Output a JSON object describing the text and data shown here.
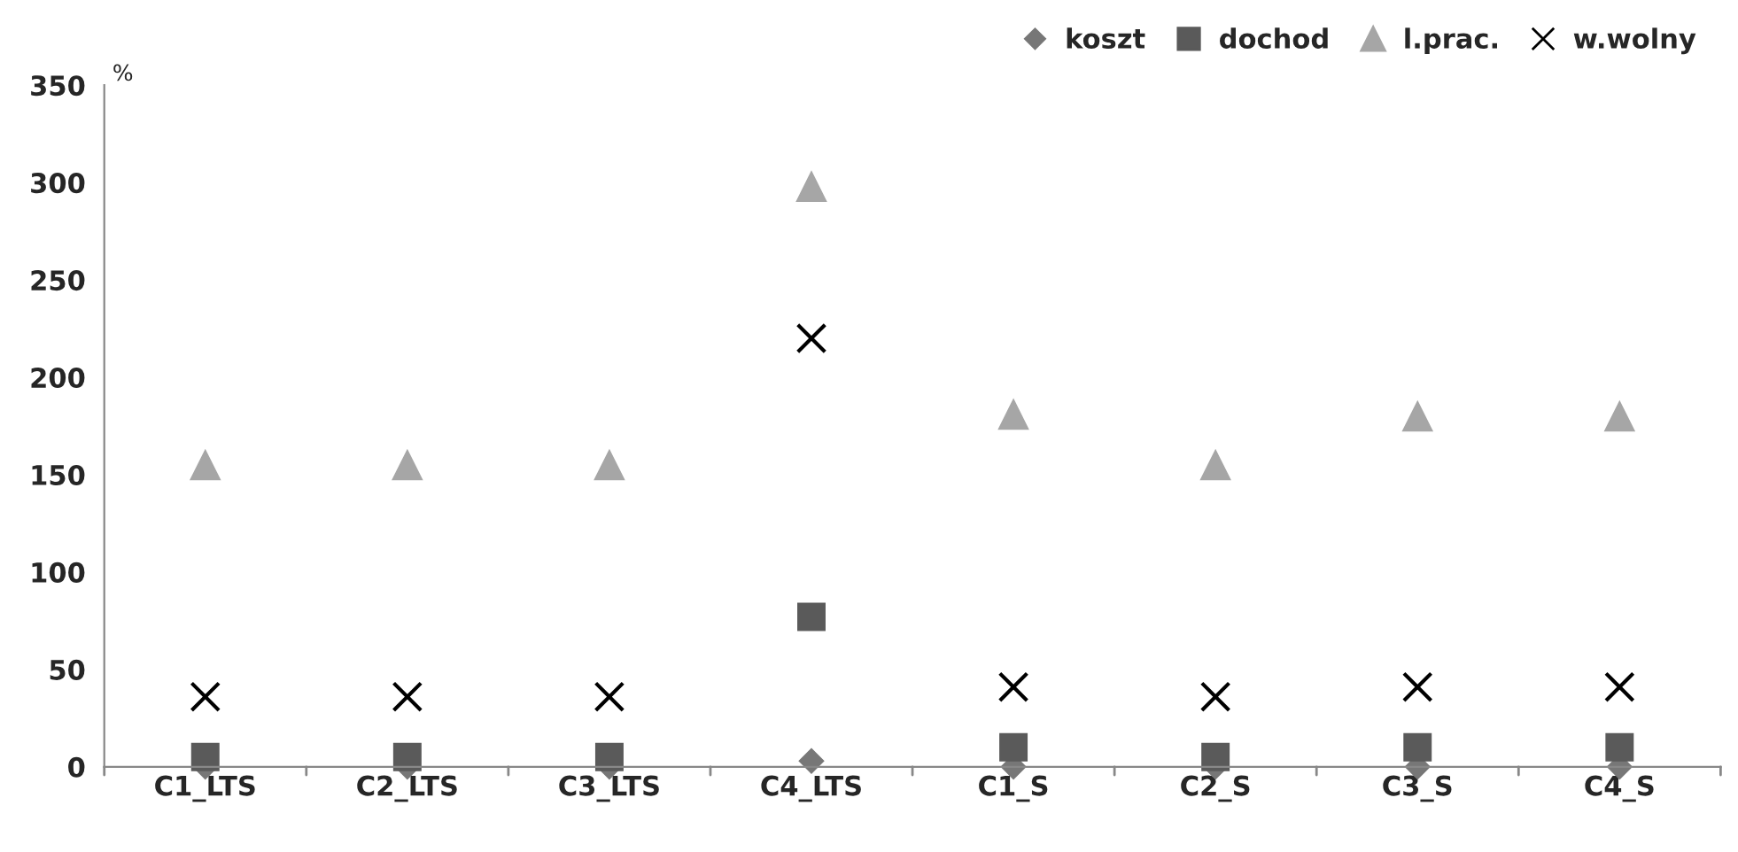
{
  "chart_data": {
    "type": "scatter",
    "ylabel": "%",
    "categories": [
      "C1_LTS",
      "C2_LTS",
      "C3_LTS",
      "C4_LTS",
      "C1_S",
      "C2_S",
      "C3_S",
      "C4_S"
    ],
    "series": [
      {
        "name": "koszt",
        "color": "#777777",
        "marker": "diamond",
        "values": [
          0,
          0,
          0,
          3,
          0,
          0,
          0,
          0
        ]
      },
      {
        "name": "dochod",
        "color": "#5a5a5a",
        "marker": "square",
        "values": [
          5,
          5,
          5,
          77,
          10,
          5,
          10,
          10
        ]
      },
      {
        "name": "l.prac.",
        "color": "#a6a6a6",
        "marker": "triangle",
        "values": [
          155,
          155,
          155,
          298,
          181,
          155,
          180,
          180
        ]
      },
      {
        "name": "w.wolny",
        "color": "#000000",
        "marker": "cross",
        "values": [
          36,
          36,
          36,
          220,
          41,
          36,
          41,
          41
        ]
      }
    ],
    "ylim": [
      0,
      350
    ],
    "yticks": [
      0,
      50,
      100,
      150,
      200,
      250,
      300,
      350
    ],
    "grid": false,
    "legend": "top right"
  }
}
